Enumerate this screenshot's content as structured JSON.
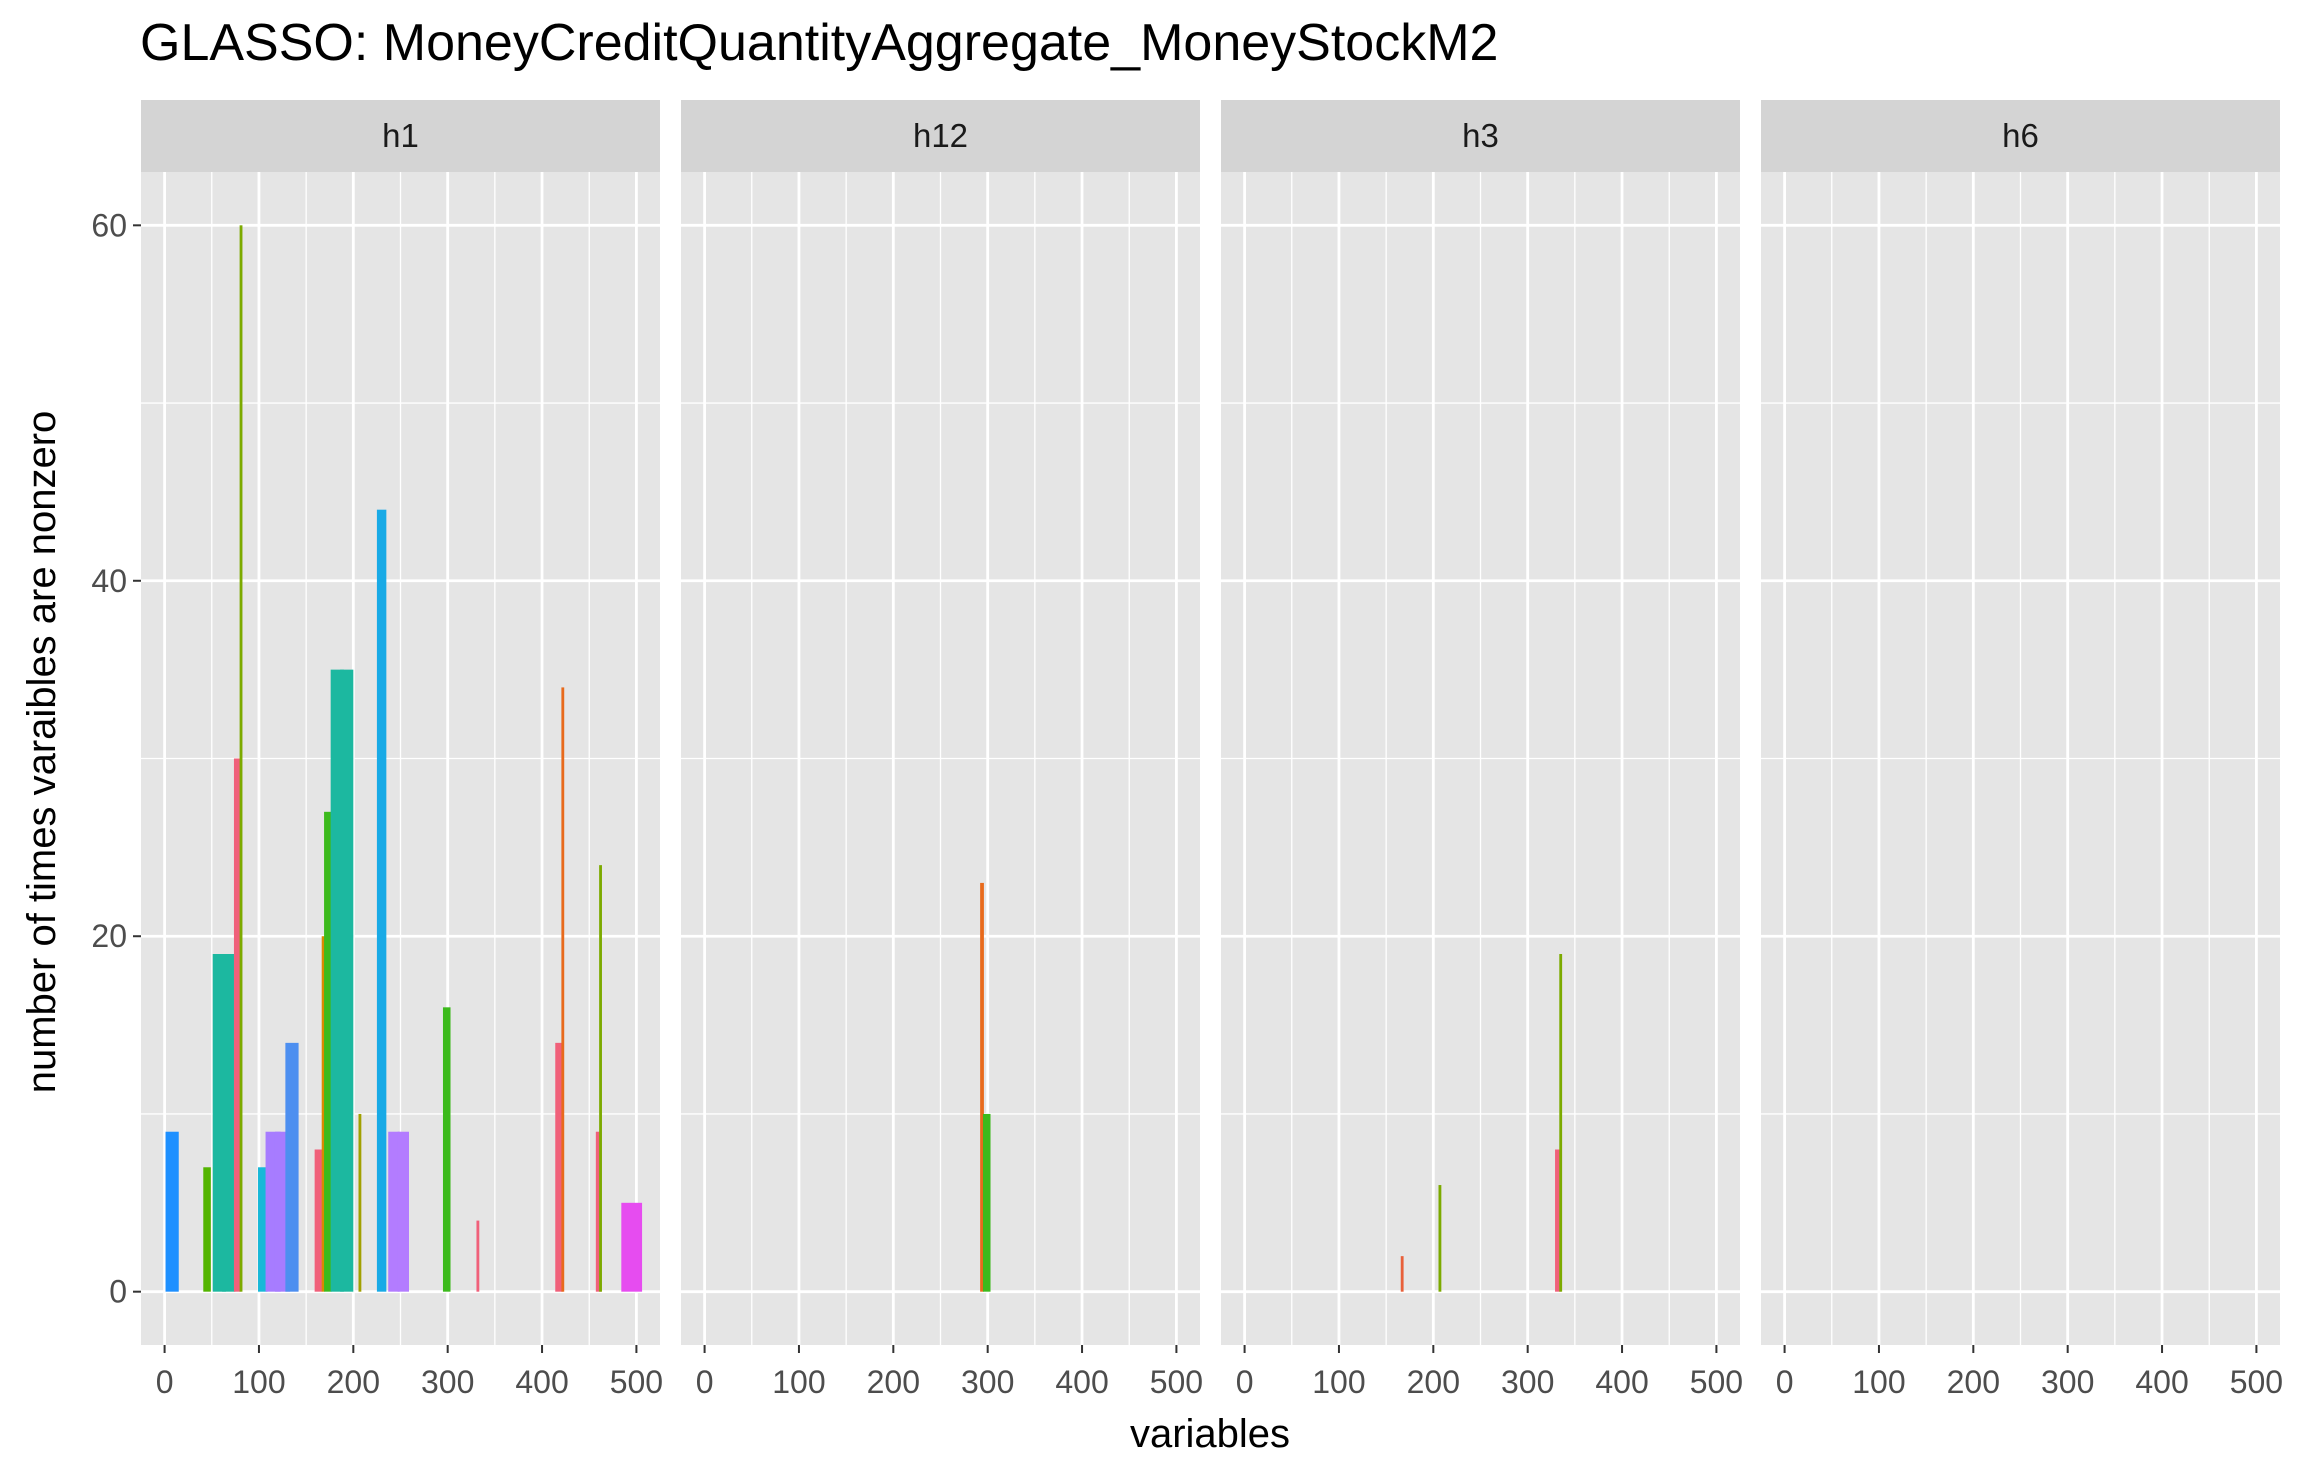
{
  "chart_data": {
    "type": "bar",
    "title": "GLASSO: MoneyCreditQuantityAggregate_MoneyStockM2",
    "xlabel": "variables",
    "ylabel": "number of times varaibles are nonzero",
    "xlim": [
      -25,
      525
    ],
    "ylim": [
      -3,
      63
    ],
    "x_ticks": [
      0,
      100,
      200,
      300,
      400,
      500
    ],
    "y_ticks": [
      0,
      20,
      40,
      60
    ],
    "x_tick_labels": [
      "0",
      "100",
      "200",
      "300",
      "400",
      "500"
    ],
    "y_tick_labels": [
      "0",
      "20",
      "40",
      "60"
    ],
    "grid": true,
    "legend": "none",
    "colors": {
      "panel_bg": "#e5e5e5",
      "strip_bg": "#d4d4d4",
      "grid": "#ffffff",
      "tick": "#333333"
    },
    "facets": [
      {
        "name": "h1",
        "bars": [
          {
            "x": 8,
            "width": 14,
            "value": 9,
            "color": "#1e90ff"
          },
          {
            "x": 45,
            "width": 8,
            "value": 7,
            "color": "#53b400"
          },
          {
            "x": 58,
            "width": 14,
            "value": 19,
            "color": "#1cb8a0"
          },
          {
            "x": 68,
            "width": 14,
            "value": 19,
            "color": "#1cb8a0"
          },
          {
            "x": 77,
            "width": 7,
            "value": 30,
            "color": "#f0607a"
          },
          {
            "x": 81,
            "width": 3,
            "value": 60,
            "color": "#7caa00"
          },
          {
            "x": 104,
            "width": 10,
            "value": 7,
            "color": "#17b8d8"
          },
          {
            "x": 115,
            "width": 16,
            "value": 9,
            "color": "#a77cff"
          },
          {
            "x": 125,
            "width": 16,
            "value": 9,
            "color": "#a77cff"
          },
          {
            "x": 135,
            "width": 14,
            "value": 14,
            "color": "#4d8ff0"
          },
          {
            "x": 163,
            "width": 8,
            "value": 8,
            "color": "#f0607a"
          },
          {
            "x": 168,
            "width": 3,
            "value": 20,
            "color": "#d98a00"
          },
          {
            "x": 173,
            "width": 8,
            "value": 27,
            "color": "#3cba1c"
          },
          {
            "x": 183,
            "width": 14,
            "value": 35,
            "color": "#1cb8a0"
          },
          {
            "x": 193,
            "width": 14,
            "value": 35,
            "color": "#1cb8a0"
          },
          {
            "x": 207,
            "width": 3,
            "value": 10,
            "color": "#a1a000"
          },
          {
            "x": 230,
            "width": 10,
            "value": 44,
            "color": "#18aae6"
          },
          {
            "x": 243,
            "width": 12,
            "value": 9,
            "color": "#b37cff"
          },
          {
            "x": 253,
            "width": 12,
            "value": 9,
            "color": "#b37cff"
          },
          {
            "x": 299,
            "width": 8,
            "value": 16,
            "color": "#3cba1c"
          },
          {
            "x": 332,
            "width": 3,
            "value": 4,
            "color": "#f0607a"
          },
          {
            "x": 418,
            "width": 8,
            "value": 14,
            "color": "#f0607a"
          },
          {
            "x": 422,
            "width": 3,
            "value": 34,
            "color": "#e86a1c"
          },
          {
            "x": 460,
            "width": 6,
            "value": 9,
            "color": "#f0607a"
          },
          {
            "x": 462,
            "width": 3,
            "value": 24,
            "color": "#7caa00"
          },
          {
            "x": 495,
            "width": 22,
            "value": 5,
            "color": "#e64cf0"
          }
        ]
      },
      {
        "name": "h12",
        "bars": [
          {
            "x": 294,
            "width": 4,
            "value": 23,
            "color": "#e86a1c"
          },
          {
            "x": 299,
            "width": 8,
            "value": 10,
            "color": "#3cba1c"
          }
        ]
      },
      {
        "name": "h3",
        "bars": [
          {
            "x": 167,
            "width": 3,
            "value": 2,
            "color": "#e8603a"
          },
          {
            "x": 207,
            "width": 3,
            "value": 6,
            "color": "#7caa00"
          },
          {
            "x": 332,
            "width": 6,
            "value": 8,
            "color": "#f0607a"
          },
          {
            "x": 335,
            "width": 3,
            "value": 19,
            "color": "#7caa00"
          }
        ]
      },
      {
        "name": "h6",
        "bars": []
      }
    ]
  }
}
